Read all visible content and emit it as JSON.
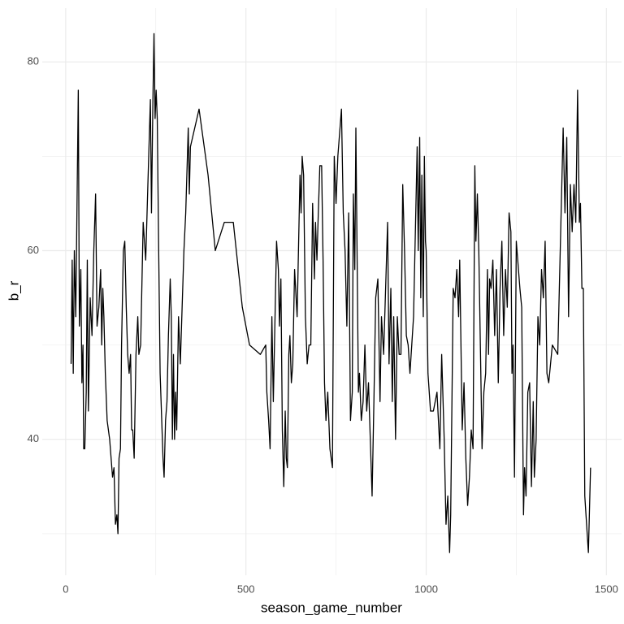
{
  "chart_data": {
    "type": "line",
    "x_label": "season_game_number",
    "y_label": "b_r",
    "color": "#000000",
    "grid": true,
    "xlim": [
      -65,
      1542
    ],
    "ylim": [
      25.6,
      85.7
    ],
    "xticks": [
      0,
      500,
      1000,
      1500
    ],
    "yticks": [
      40,
      60,
      80
    ],
    "xminorticks": [
      250,
      750,
      1250
    ],
    "yminorticks": [
      30,
      50,
      70
    ],
    "x": [
      15,
      18,
      21,
      24,
      28,
      35,
      38,
      42,
      45,
      48,
      50,
      53,
      57,
      60,
      63,
      68,
      73,
      78,
      83,
      87,
      92,
      97,
      100,
      103,
      106,
      110,
      115,
      122,
      130,
      134,
      138,
      142,
      145,
      148,
      152,
      155,
      160,
      164,
      168,
      172,
      176,
      180,
      183,
      186,
      190,
      195,
      200,
      203,
      208,
      215,
      222,
      228,
      235,
      238,
      242,
      245,
      248,
      251,
      254,
      258,
      262,
      270,
      273,
      277,
      281,
      285,
      290,
      293,
      296,
      299,
      302,
      305,
      308,
      313,
      318,
      328,
      333,
      340,
      343,
      346,
      370,
      395,
      415,
      440,
      465,
      490,
      510,
      540,
      555,
      558,
      563,
      567,
      572,
      576,
      585,
      590,
      593,
      597,
      601,
      605,
      609,
      612,
      615,
      619,
      622,
      626,
      630,
      635,
      642,
      650,
      653,
      656,
      660,
      665,
      670,
      675,
      680,
      685,
      690,
      693,
      697,
      700,
      705,
      710,
      714,
      718,
      722,
      727,
      733,
      740,
      745,
      750,
      755,
      765,
      770,
      775,
      780,
      785,
      790,
      795,
      798,
      802,
      805,
      812,
      815,
      820,
      825,
      830,
      835,
      840,
      850,
      855,
      860,
      866,
      872,
      876,
      882,
      893,
      897,
      902,
      906,
      910,
      915,
      920,
      925,
      930,
      935,
      940,
      945,
      950,
      955,
      965,
      975,
      978,
      982,
      985,
      988,
      992,
      995,
      998,
      1000,
      1005,
      1012,
      1020,
      1030,
      1038,
      1043,
      1050,
      1055,
      1060,
      1065,
      1068,
      1075,
      1080,
      1085,
      1090,
      1093,
      1100,
      1105,
      1110,
      1115,
      1120,
      1125,
      1130,
      1135,
      1138,
      1142,
      1146,
      1155,
      1160,
      1165,
      1170,
      1173,
      1176,
      1180,
      1185,
      1190,
      1195,
      1200,
      1205,
      1210,
      1215,
      1220,
      1225,
      1230,
      1235,
      1238,
      1241,
      1245,
      1250,
      1260,
      1265,
      1270,
      1273,
      1277,
      1282,
      1287,
      1292,
      1297,
      1300,
      1305,
      1310,
      1315,
      1320,
      1325,
      1330,
      1335,
      1340,
      1350,
      1365,
      1380,
      1385,
      1390,
      1395,
      1400,
      1405,
      1410,
      1415,
      1420,
      1425,
      1428,
      1432,
      1436,
      1440,
      1450,
      1456
    ],
    "values": [
      48,
      59,
      47,
      60,
      53,
      77,
      52,
      58,
      46,
      50,
      39,
      39,
      45,
      59,
      43,
      55,
      51,
      60,
      66,
      52,
      54,
      58,
      50,
      56,
      53,
      47,
      42,
      40,
      36,
      37,
      31,
      32,
      30,
      38,
      39,
      50,
      60,
      61,
      54,
      49,
      47,
      49,
      41,
      41,
      38,
      49,
      53,
      49,
      50,
      63,
      59,
      67,
      76,
      64,
      76,
      83,
      74,
      77,
      74,
      60,
      47,
      38,
      36,
      42,
      44,
      51,
      57,
      53,
      40,
      49,
      40,
      45,
      41,
      53,
      48,
      60,
      64,
      73,
      66,
      71,
      75,
      68,
      60,
      63,
      63,
      54,
      50,
      49,
      50,
      45,
      42,
      39,
      53,
      44,
      61,
      58,
      52,
      57,
      41,
      35,
      43,
      38,
      37,
      49,
      51,
      46,
      48,
      58,
      53,
      68,
      64,
      70,
      68,
      53,
      48,
      50,
      50,
      65,
      57,
      63,
      59,
      63,
      69,
      69,
      59,
      46,
      42,
      45,
      39,
      37,
      70,
      65,
      70,
      75,
      64,
      60,
      52,
      64,
      42,
      45,
      66,
      58,
      73,
      45,
      47,
      42,
      44,
      50,
      43,
      46,
      34,
      44,
      55,
      57,
      44,
      53,
      49,
      63,
      48,
      56,
      44,
      53,
      40,
      53,
      49,
      49,
      67,
      60,
      51,
      50,
      47,
      53,
      71,
      60,
      72,
      55,
      68,
      53,
      70,
      61,
      60,
      47,
      43,
      43,
      45,
      39,
      49,
      40,
      31,
      34,
      28,
      32,
      56,
      55,
      58,
      53,
      59,
      41,
      46,
      38,
      33,
      36,
      41,
      39,
      69,
      61,
      66,
      60,
      39,
      45,
      47,
      58,
      49,
      57,
      56,
      59,
      51,
      58,
      46,
      56,
      61,
      51,
      58,
      54,
      64,
      62,
      47,
      50,
      36,
      61,
      56,
      54,
      32,
      37,
      34,
      45,
      46,
      35,
      44,
      36,
      40,
      53,
      50,
      58,
      55,
      61,
      47,
      46,
      50,
      49,
      73,
      64,
      72,
      53,
      67,
      62,
      67,
      63,
      77,
      63,
      65,
      56,
      56,
      34,
      28,
      37
    ]
  }
}
